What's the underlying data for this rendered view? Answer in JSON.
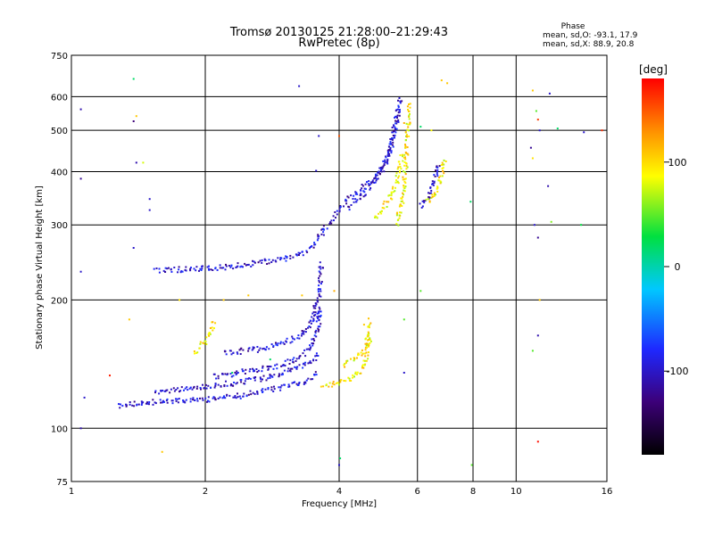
{
  "chart_data": {
    "type": "scatter",
    "title": "Tromsø 20130125 21:28:00–21:29:43",
    "subtitle": "RwPretec (8p)",
    "xlabel": "Frequency [MHz]",
    "ylabel": "Stationary phase Virtual Height [km]",
    "x_scale": "log",
    "y_scale": "log",
    "xlim": [
      1,
      16
    ],
    "ylim": [
      75,
      750
    ],
    "x_ticks": [
      1,
      2,
      4,
      6,
      8,
      10,
      16
    ],
    "y_ticks": [
      75,
      100,
      200,
      300,
      400,
      500,
      600,
      750
    ],
    "grid": true,
    "phase_info": {
      "title": "Phase",
      "line_o": "mean, sd,O: -93.1, 17.9",
      "line_x": "mean, sd,X:  88.9, 20.8"
    },
    "colorbar": {
      "unit": "[deg]",
      "range": [
        -180,
        180
      ],
      "ticks": [
        100,
        0,
        -100
      ],
      "colors": [
        "#000000",
        "#3c0078",
        "#1e28ff",
        "#00c8ff",
        "#00e040",
        "#ffff00",
        "#ff9000",
        "#ff0000"
      ]
    },
    "series": [
      {
        "name": "",
        "kind": "traces",
        "phase": -100,
        "traces": [
          {
            "f": [
              1.28,
              1.5,
              1.8,
              2.1,
              2.5,
              2.9,
              3.3,
              3.5,
              3.6
            ],
            "h": [
              113,
              115,
              116,
              117,
              120,
              124,
              128,
              132,
              135
            ]
          },
          {
            "f": [
              1.55,
              1.8,
              2.1,
              2.4,
              2.7,
              3.0,
              3.3,
              3.5,
              3.6
            ],
            "h": [
              122,
              124,
              126,
              128,
              131,
              135,
              140,
              145,
              150
            ]
          },
          {
            "f": [
              2.1,
              2.5,
              2.9,
              3.2,
              3.4,
              3.55,
              3.65
            ],
            "h": [
              132,
              136,
              140,
              145,
              152,
              165,
              190
            ]
          },
          {
            "f": [
              2.2,
              2.6,
              3.0,
              3.3,
              3.45,
              3.55
            ],
            "h": [
              150,
              153,
              158,
              165,
              175,
              195
            ]
          },
          {
            "f": [
              1.55,
              1.8,
              2.05,
              2.3,
              2.7,
              3.0,
              3.3,
              3.5,
              3.65,
              3.75
            ],
            "h": [
              234,
              236,
              237,
              240,
              245,
              250,
              258,
              268,
              285,
              300
            ]
          },
          {
            "f": [
              3.55,
              3.6,
              3.62,
              3.65
            ],
            "h": [
              180,
              200,
              220,
              245
            ]
          },
          {
            "f": [
              3.8,
              4.0,
              4.2,
              4.5,
              4.8,
              5.0,
              5.2,
              5.35,
              5.5
            ],
            "h": [
              300,
              325,
              345,
              365,
              385,
              410,
              450,
              520,
              600
            ]
          },
          {
            "f": [
              4.2,
              4.5,
              4.8,
              5.1,
              5.3,
              5.45
            ],
            "h": [
              330,
              350,
              380,
              420,
              480,
              560
            ]
          },
          {
            "f": [
              6.1,
              6.3,
              6.5,
              6.7
            ],
            "h": [
              330,
              345,
              370,
              420
            ]
          }
        ]
      },
      {
        "name": "",
        "kind": "traces",
        "phase": 95,
        "traces": [
          {
            "f": [
              3.65,
              3.9,
              4.1,
              4.3,
              4.5,
              4.6,
              4.65,
              4.68
            ],
            "h": [
              126,
              127,
              129,
              132,
              137,
              145,
              155,
              165
            ]
          },
          {
            "f": [
              4.1,
              4.3,
              4.5,
              4.6,
              4.65,
              4.7
            ],
            "h": [
              140,
              145,
              150,
              155,
              165,
              180
            ]
          },
          {
            "f": [
              5.4,
              5.5,
              5.6,
              5.65,
              5.7,
              5.75
            ],
            "h": [
              300,
              330,
              370,
              420,
              500,
              580
            ]
          },
          {
            "f": [
              4.8,
              5.0,
              5.2,
              5.4,
              5.55
            ],
            "h": [
              310,
              325,
              345,
              380,
              440
            ]
          },
          {
            "f": [
              6.3,
              6.6,
              6.8,
              6.9
            ],
            "h": [
              340,
              360,
              390,
              430
            ]
          },
          {
            "f": [
              1.9,
              2.05,
              2.1
            ],
            "h": [
              150,
              165,
              178
            ]
          }
        ]
      },
      {
        "name": "",
        "kind": "scatter",
        "points": [
          {
            "x": 1.05,
            "y": 560,
            "p": -110
          },
          {
            "x": 1.05,
            "y": 385,
            "p": -120
          },
          {
            "x": 1.05,
            "y": 233,
            "p": -100
          },
          {
            "x": 1.07,
            "y": 118,
            "p": -100
          },
          {
            "x": 1.05,
            "y": 100,
            "p": -110
          },
          {
            "x": 1.38,
            "y": 660,
            "p": 20
          },
          {
            "x": 1.4,
            "y": 540,
            "p": 110
          },
          {
            "x": 1.38,
            "y": 525,
            "p": -130
          },
          {
            "x": 1.4,
            "y": 420,
            "p": -110
          },
          {
            "x": 1.45,
            "y": 420,
            "p": 80
          },
          {
            "x": 1.5,
            "y": 345,
            "p": -100
          },
          {
            "x": 1.5,
            "y": 325,
            "p": -100
          },
          {
            "x": 1.38,
            "y": 265,
            "p": -100
          },
          {
            "x": 1.35,
            "y": 180,
            "p": 110
          },
          {
            "x": 1.6,
            "y": 88,
            "p": 110
          },
          {
            "x": 1.22,
            "y": 133,
            "p": 170
          },
          {
            "x": 3.25,
            "y": 635,
            "p": -100
          },
          {
            "x": 3.6,
            "y": 485,
            "p": -100
          },
          {
            "x": 3.55,
            "y": 402,
            "p": -100
          },
          {
            "x": 4.0,
            "y": 485,
            "p": 150
          },
          {
            "x": 4.02,
            "y": 85,
            "p": 20
          },
          {
            "x": 4.0,
            "y": 82,
            "p": -100
          },
          {
            "x": 5.6,
            "y": 520,
            "p": 120
          },
          {
            "x": 6.1,
            "y": 510,
            "p": 20
          },
          {
            "x": 6.45,
            "y": 500,
            "p": 90
          },
          {
            "x": 6.8,
            "y": 655,
            "p": 110
          },
          {
            "x": 7.0,
            "y": 645,
            "p": 110
          },
          {
            "x": 6.1,
            "y": 210,
            "p": 50
          },
          {
            "x": 5.6,
            "y": 180,
            "p": 50
          },
          {
            "x": 5.6,
            "y": 135,
            "p": -100
          },
          {
            "x": 7.9,
            "y": 340,
            "p": 20
          },
          {
            "x": 7.95,
            "y": 82,
            "p": 50
          },
          {
            "x": 10.9,
            "y": 620,
            "p": 110
          },
          {
            "x": 11.1,
            "y": 555,
            "p": 50
          },
          {
            "x": 11.2,
            "y": 530,
            "p": 160
          },
          {
            "x": 11.3,
            "y": 500,
            "p": -100
          },
          {
            "x": 10.8,
            "y": 455,
            "p": -120
          },
          {
            "x": 10.9,
            "y": 430,
            "p": 100
          },
          {
            "x": 11.0,
            "y": 300,
            "p": -100
          },
          {
            "x": 11.2,
            "y": 280,
            "p": -120
          },
          {
            "x": 11.3,
            "y": 200,
            "p": 110
          },
          {
            "x": 11.2,
            "y": 165,
            "p": -110
          },
          {
            "x": 10.9,
            "y": 152,
            "p": 50
          },
          {
            "x": 11.2,
            "y": 93,
            "p": 175
          },
          {
            "x": 11.9,
            "y": 610,
            "p": -100
          },
          {
            "x": 11.8,
            "y": 370,
            "p": -110
          },
          {
            "x": 12.0,
            "y": 305,
            "p": 60
          },
          {
            "x": 12.4,
            "y": 505,
            "p": 20
          },
          {
            "x": 14.2,
            "y": 495,
            "p": -100
          },
          {
            "x": 14.0,
            "y": 300,
            "p": 30
          },
          {
            "x": 15.6,
            "y": 500,
            "p": 165
          },
          {
            "x": 2.2,
            "y": 200,
            "p": 110
          },
          {
            "x": 2.5,
            "y": 205,
            "p": 110
          },
          {
            "x": 3.3,
            "y": 205,
            "p": 110
          },
          {
            "x": 3.9,
            "y": 210,
            "p": 120
          },
          {
            "x": 2.3,
            "y": 135,
            "p": 20
          },
          {
            "x": 1.75,
            "y": 200,
            "p": 100
          },
          {
            "x": 2.8,
            "y": 145,
            "p": 20
          },
          {
            "x": 4.55,
            "y": 175,
            "p": 110
          }
        ]
      }
    ]
  }
}
